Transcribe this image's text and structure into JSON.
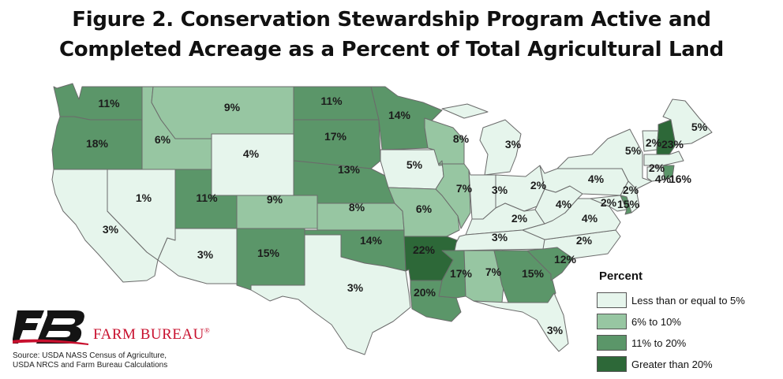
{
  "title": {
    "line1": "Figure 2. Conservation Stewardship Program Active and",
    "line2": "Completed Acreage as a Percent of Total Agricultural Land"
  },
  "legend": {
    "title": "Percent",
    "items": [
      {
        "label": "Less than or equal to 5%",
        "color": "#e6f5ec"
      },
      {
        "label": "6% to 10%",
        "color": "#97c6a2"
      },
      {
        "label": "11% to 20%",
        "color": "#5b9669"
      },
      {
        "label": "Greater than 20%",
        "color": "#2d6838"
      }
    ]
  },
  "colors": {
    "low": "#e6f5ec",
    "mid": "#97c6a2",
    "high": "#5b9669",
    "top": "#2d6838",
    "brand_red": "#c8102e",
    "logo_black": "#141414"
  },
  "brand": {
    "name": "FARM BUREAU",
    "mark": "®",
    "logo_icon": "farm-bureau-fb-logo"
  },
  "source": {
    "line1": "Source: USDA NASS Census of Agriculture,",
    "line2": "USDA NRCS and Farm Bureau Calculations"
  },
  "states": [
    {
      "id": "WA",
      "value": 11,
      "label": "11%"
    },
    {
      "id": "OR",
      "value": 18,
      "label": "18%"
    },
    {
      "id": "CA",
      "value": 3,
      "label": "3%"
    },
    {
      "id": "NV",
      "value": 1,
      "label": "1%"
    },
    {
      "id": "ID",
      "value": 6,
      "label": "6%"
    },
    {
      "id": "MT",
      "value": 9,
      "label": "9%"
    },
    {
      "id": "WY",
      "value": 4,
      "label": "4%"
    },
    {
      "id": "UT",
      "value": 11,
      "label": "11%"
    },
    {
      "id": "AZ",
      "value": 3,
      "label": "3%"
    },
    {
      "id": "CO",
      "value": 9,
      "label": "9%"
    },
    {
      "id": "NM",
      "value": 15,
      "label": "15%"
    },
    {
      "id": "ND",
      "value": 11,
      "label": "11%"
    },
    {
      "id": "SD",
      "value": 17,
      "label": "17%"
    },
    {
      "id": "NE",
      "value": 13,
      "label": "13%"
    },
    {
      "id": "KS",
      "value": 8,
      "label": "8%"
    },
    {
      "id": "OK",
      "value": 14,
      "label": "14%"
    },
    {
      "id": "TX",
      "value": 3,
      "label": "3%"
    },
    {
      "id": "MN",
      "value": 14,
      "label": "14%"
    },
    {
      "id": "IA",
      "value": 5,
      "label": "5%"
    },
    {
      "id": "MO",
      "value": 6,
      "label": "6%"
    },
    {
      "id": "AR",
      "value": 22,
      "label": "22%"
    },
    {
      "id": "LA",
      "value": 20,
      "label": "20%"
    },
    {
      "id": "WI",
      "value": 8,
      "label": "8%"
    },
    {
      "id": "IL",
      "value": 7,
      "label": "7%"
    },
    {
      "id": "MI",
      "value": 3,
      "label": "3%"
    },
    {
      "id": "IN",
      "value": 3,
      "label": "3%"
    },
    {
      "id": "OH",
      "value": 2,
      "label": "2%"
    },
    {
      "id": "KY",
      "value": 2,
      "label": "2%"
    },
    {
      "id": "TN",
      "value": 3,
      "label": "3%"
    },
    {
      "id": "MS",
      "value": 17,
      "label": "17%"
    },
    {
      "id": "AL",
      "value": 7,
      "label": "7%"
    },
    {
      "id": "GA",
      "value": 15,
      "label": "15%"
    },
    {
      "id": "FL",
      "value": 3,
      "label": "3%"
    },
    {
      "id": "SC",
      "value": 12,
      "label": "12%"
    },
    {
      "id": "NC",
      "value": 2,
      "label": "2%"
    },
    {
      "id": "VA",
      "value": 4,
      "label": "4%"
    },
    {
      "id": "WV",
      "value": 4,
      "label": "4%"
    },
    {
      "id": "PA",
      "value": 4,
      "label": "4%"
    },
    {
      "id": "NY",
      "value": 5,
      "label": "5%"
    },
    {
      "id": "VT",
      "value": 2,
      "label": "2%"
    },
    {
      "id": "NH",
      "value": 23,
      "label": "23%"
    },
    {
      "id": "ME",
      "value": 5,
      "label": "5%"
    },
    {
      "id": "MA",
      "value": 2,
      "label": "2%"
    },
    {
      "id": "CT",
      "value": 4,
      "label": "4%"
    },
    {
      "id": "RI",
      "value": 16,
      "label": "16%"
    },
    {
      "id": "NJ",
      "value": 2,
      "label": "2%"
    },
    {
      "id": "MD",
      "value": 2,
      "label": "2%"
    },
    {
      "id": "DE",
      "value": 15,
      "label": "15%"
    }
  ]
}
